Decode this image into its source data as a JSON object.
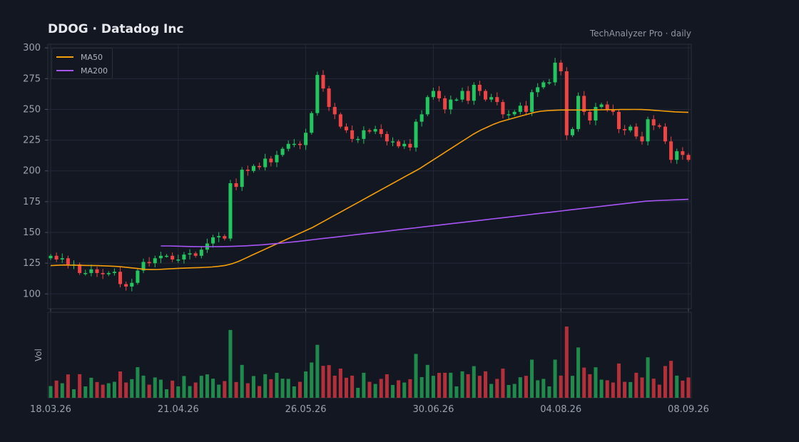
{
  "header": {
    "title": "DDOG  ·  Datadog Inc",
    "source": "TechAnalyzer Pro · daily"
  },
  "colors": {
    "background": "#131722",
    "grid": "#232838",
    "axis_text": "#9aa1ad",
    "up": "#22c55e",
    "down": "#ef4444",
    "ma50": "#f59e0b",
    "ma200": "#a855f7"
  },
  "chart_data": {
    "type": "candlestick",
    "ticker": "DDOG",
    "y_axis": {
      "ticks": [
        100,
        125,
        150,
        175,
        200,
        225,
        250,
        275,
        300
      ],
      "range": [
        88,
        303
      ]
    },
    "volume_axis": {
      "label": "Vol"
    },
    "x_axis": {
      "ticks": [
        "18.03.26",
        "21.04.26",
        "26.05.26",
        "30.06.26",
        "04.08.26",
        "08.09.26"
      ]
    },
    "legend": [
      {
        "name": "MA50",
        "color": "#f59e0b"
      },
      {
        "name": "MA200",
        "color": "#a855f7"
      }
    ],
    "grid": true,
    "legend_position": "top-left",
    "closes": [
      131,
      128,
      129,
      124,
      124,
      117,
      117,
      120,
      117,
      116,
      117,
      118,
      108,
      106,
      109,
      119,
      126,
      125,
      129,
      131,
      131,
      128,
      128,
      132,
      133,
      131,
      136,
      141,
      146,
      147,
      145,
      190,
      187,
      201,
      200,
      204,
      203,
      210,
      207,
      213,
      218,
      222,
      222,
      221,
      231,
      247,
      278,
      267,
      252,
      246,
      236,
      233,
      226,
      226,
      233,
      232,
      234,
      230,
      224,
      224,
      220,
      222,
      219,
      240,
      246,
      260,
      265,
      259,
      250,
      258,
      258,
      265,
      257,
      270,
      265,
      258,
      260,
      256,
      246,
      246,
      248,
      253,
      248,
      264,
      268,
      272,
      272,
      288,
      281,
      229,
      234,
      261,
      248,
      241,
      252,
      254,
      250,
      248,
      234,
      233,
      236,
      228,
      224,
      242,
      237,
      236,
      224,
      209,
      216,
      213,
      209
    ],
    "ma50": [
      123,
      123.3,
      123.5,
      123.4,
      123.3,
      123.2,
      123.1,
      123,
      122.8,
      122.6,
      122.3,
      121.8,
      121.2,
      120.6,
      120,
      119.8,
      119.9,
      120.2,
      120.5,
      120.8,
      121,
      121.2,
      121.4,
      121.6,
      121.9,
      122.4,
      123.2,
      124.5,
      126.5,
      129,
      131.5,
      134,
      136.5,
      139,
      141.5,
      144,
      146.5,
      149,
      151.5,
      154,
      157,
      160,
      163,
      166,
      169,
      172,
      175,
      178,
      181,
      184,
      187,
      190,
      193,
      196,
      199,
      202,
      205.5,
      209,
      212.5,
      216,
      219.5,
      223,
      226.5,
      230,
      233,
      235.5,
      238,
      240,
      241.5,
      243,
      244.5,
      246,
      247.5,
      248.5,
      249,
      249.3,
      249.5,
      249.5,
      249.5,
      249.5,
      249.5,
      249.6,
      249.7,
      249.8,
      249.8,
      249.9,
      249.9,
      250,
      249.9,
      249.6,
      249.2,
      248.8,
      248.4,
      248,
      247.8,
      247.6
    ],
    "ma200_start_index": 19,
    "ma200": [
      139,
      139,
      138.8,
      138.6,
      138.5,
      138.4,
      138.4,
      138.5,
      138.6,
      138.8,
      139.1,
      139.5,
      140,
      140.6,
      141.2,
      141.9,
      142.6,
      143.4,
      144.2,
      145,
      145.8,
      146.6,
      147.4,
      148.2,
      149,
      149.8,
      150.6,
      151.4,
      152.2,
      153,
      153.8,
      154.6,
      155.4,
      156.2,
      157,
      157.8,
      158.6,
      159.4,
      160.2,
      161,
      161.8,
      162.6,
      163.4,
      164.2,
      165,
      165.8,
      166.6,
      167.4,
      168.2,
      169,
      169.8,
      170.6,
      171.4,
      172.2,
      173,
      173.8,
      174.6,
      175.4,
      175.8,
      176.1,
      176.4,
      176.6,
      176.9
    ]
  }
}
